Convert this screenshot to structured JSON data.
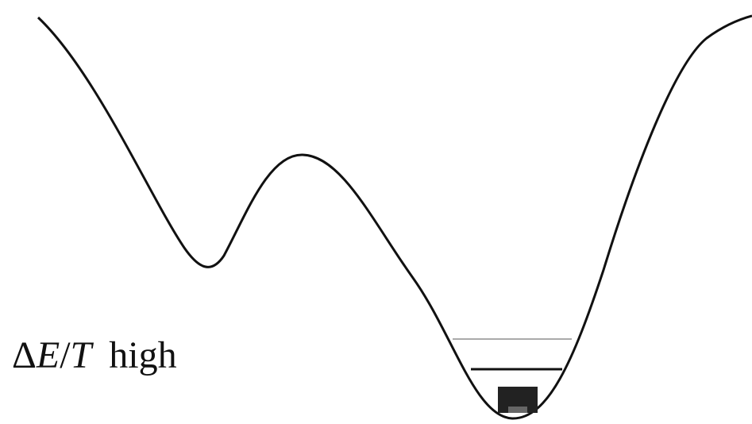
{
  "label": {
    "symbol": [
      "Δ",
      "E",
      "/",
      "T"
    ],
    "word": "high"
  }
}
